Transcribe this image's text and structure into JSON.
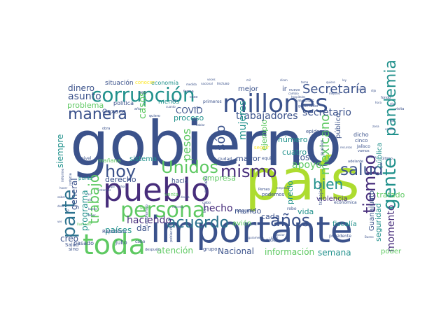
{
  "palette": {
    "navy": "#3b528b",
    "purple": "#472d7b",
    "teal": "#21918c",
    "green": "#5ec962",
    "lime": "#addc30",
    "blue": "#2c728e",
    "yellow": "#fde725"
  },
  "words": [
    {
      "text": "gobierno",
      "color": "navy"
    },
    {
      "text": "país",
      "color": "lime"
    },
    {
      "text": "importante",
      "color": "navy"
    },
    {
      "text": "pueblo",
      "color": "purple"
    },
    {
      "text": "toda",
      "color": "green"
    },
    {
      "text": "persona",
      "color": "green"
    },
    {
      "text": "millones",
      "color": "navy"
    },
    {
      "text": "corrupción",
      "color": "teal"
    },
    {
      "text": "parte",
      "color": "blue"
    },
    {
      "text": "gente",
      "color": "teal"
    },
    {
      "text": "tiempo",
      "color": "purple"
    },
    {
      "text": "Unidos",
      "color": "green"
    },
    {
      "text": "mismo",
      "color": "purple"
    },
    {
      "text": "hoy",
      "color": "navy"
    },
    {
      "text": "salud",
      "color": "navy"
    },
    {
      "text": "años",
      "color": "navy"
    },
    {
      "text": "manera",
      "color": "navy"
    },
    {
      "text": "Secretaría",
      "color": "navy"
    },
    {
      "text": "pandemia",
      "color": "teal"
    },
    {
      "text": "acuerdo",
      "color": "blue"
    },
    {
      "text": "trabajo",
      "color": "green"
    },
    {
      "text": "bien",
      "color": "teal"
    },
    {
      "text": "mexicano",
      "color": "green"
    },
    {
      "text": "sólo",
      "color": "navy"
    },
    {
      "text": "momento",
      "color": "purple"
    },
    {
      "text": "pesos",
      "color": "green"
    },
    {
      "text": "apoyo",
      "color": "green"
    },
    {
      "text": "trabajadores",
      "color": "navy"
    },
    {
      "text": "secretario",
      "color": "navy"
    },
    {
      "text": "hecho",
      "color": "purple"
    },
    {
      "text": "haciendo",
      "color": "purple"
    },
    {
      "text": "asunto",
      "color": "navy"
    },
    {
      "text": "dinero",
      "color": "navy"
    },
    {
      "text": "problema",
      "color": "green"
    },
    {
      "text": "siempre",
      "color": "teal"
    },
    {
      "text": "mujeres",
      "color": "teal"
    },
    {
      "text": "casos",
      "color": "green"
    },
    {
      "text": "COVID",
      "color": "navy"
    },
    {
      "text": "proceso",
      "color": "teal"
    },
    {
      "text": "general",
      "color": "navy"
    },
    {
      "text": "programa",
      "color": "teal"
    },
    {
      "text": "países",
      "color": "teal"
    },
    {
      "text": "dar",
      "color": "navy"
    },
    {
      "text": "creo",
      "color": "navy"
    },
    {
      "text": "atención",
      "color": "green"
    },
    {
      "text": "Nacional",
      "color": "navy"
    },
    {
      "text": "información",
      "color": "green"
    },
    {
      "text": "semana",
      "color": "teal"
    },
    {
      "text": "poder",
      "color": "green"
    },
    {
      "text": "seguridad",
      "color": "teal"
    },
    {
      "text": "Guanajuato",
      "color": "navy"
    },
    {
      "text": "mundo",
      "color": "navy"
    },
    {
      "text": "vida",
      "color": "teal"
    },
    {
      "text": "cada",
      "color": "navy"
    },
    {
      "text": "precio",
      "color": "teal"
    },
    {
      "text": "violencia",
      "color": "purple"
    },
    {
      "text": "tratado",
      "color": "green"
    },
    {
      "text": "público",
      "color": "navy"
    },
    {
      "text": "cosa",
      "color": "navy"
    },
    {
      "text": "cuatro",
      "color": "teal"
    },
    {
      "text": "número",
      "color": "teal"
    },
    {
      "text": "empresa",
      "color": "green"
    },
    {
      "text": "sistema",
      "color": "teal"
    },
    {
      "text": "derecho",
      "color": "navy"
    },
    {
      "text": "situación",
      "color": "navy"
    },
    {
      "text": "economía",
      "color": "teal"
    },
    {
      "text": "mejor",
      "color": "navy"
    },
    {
      "text": "mayor",
      "color": "navy"
    },
    {
      "text": "ejemplo",
      "color": "green"
    },
    {
      "text": "pública",
      "color": "teal"
    },
    {
      "text": "hacia",
      "color": "navy"
    },
    {
      "text": "avión",
      "color": "green"
    },
    {
      "text": "fiscalía",
      "color": "teal"
    },
    {
      "text": "menos",
      "color": "teal"
    },
    {
      "text": "ir",
      "color": "navy"
    },
    {
      "text": "conocer",
      "color": "yellow"
    },
    {
      "text": "política",
      "color": "navy"
    },
    {
      "text": "Oaxaca",
      "color": "navy"
    },
    {
      "text": "mañana",
      "color": "green"
    },
    {
      "text": "julio",
      "color": "navy"
    },
    {
      "text": "pasado",
      "color": "navy"
    },
    {
      "text": "sino",
      "color": "navy"
    },
    {
      "text": "República",
      "color": "navy"
    },
    {
      "text": "punto",
      "color": "teal"
    },
    {
      "text": "Salud",
      "color": "navy"
    },
    {
      "text": "nivel",
      "color": "navy"
    },
    {
      "text": "grupo",
      "color": "navy"
    },
    {
      "text": "sido",
      "color": "navy"
    },
    {
      "text": "cabo",
      "color": "navy"
    },
    {
      "text": "podemos",
      "color": "navy"
    },
    {
      "text": "dicho",
      "color": "navy"
    },
    {
      "text": "cinco",
      "color": "navy"
    },
    {
      "text": "Jalisco",
      "color": "navy"
    },
    {
      "text": "segundo",
      "color": "navy"
    },
    {
      "text": "robo",
      "color": "navy"
    },
    {
      "text": "económica",
      "color": "navy"
    },
    {
      "text": "epidemia",
      "color": "navy"
    },
    {
      "text": "ciudad",
      "color": "navy"
    },
    {
      "text": "equipo",
      "color": "navy"
    },
    {
      "text": "primera",
      "color": "navy"
    },
    {
      "text": "muchas",
      "color": "navy"
    },
    {
      "text": "gobernador",
      "color": "navy"
    },
    {
      "text": "primeros",
      "color": "navy"
    },
    {
      "text": "incluso",
      "color": "navy"
    },
    {
      "text": "pueden",
      "color": "navy"
    },
    {
      "text": "venta",
      "color": "green"
    },
    {
      "text": "trabajando",
      "color": "navy"
    },
    {
      "text": "adelante",
      "color": "navy"
    },
    {
      "text": "último",
      "color": "navy"
    },
    {
      "text": "forma",
      "color": "navy"
    },
    {
      "text": "vez",
      "color": "navy"
    },
    {
      "text": "caso",
      "color": "navy"
    },
    {
      "text": "visita",
      "color": "navy"
    },
    {
      "text": "fondo",
      "color": "navy"
    },
    {
      "text": "vamos",
      "color": "navy"
    },
    {
      "text": "obra",
      "color": "navy"
    },
    {
      "text": "año",
      "color": "navy"
    },
    {
      "text": "nuevo",
      "color": "navy"
    },
    {
      "text": "seguir",
      "color": "yellow"
    },
    {
      "text": "compromiso",
      "color": "navy"
    },
    {
      "text": "población",
      "color": "navy"
    },
    {
      "text": "llamado",
      "color": "green"
    },
    {
      "text": "después",
      "color": "navy"
    },
    {
      "text": "cabo",
      "color": "navy"
    },
    {
      "text": "tipo",
      "color": "navy"
    },
    {
      "text": "Pemex",
      "color": "navy"
    },
    {
      "text": "hospitales",
      "color": "navy"
    },
    {
      "text": "cambio",
      "color": "navy"
    },
    {
      "text": "casi",
      "color": "navy"
    },
    {
      "text": "respeto",
      "color": "navy"
    },
    {
      "text": "justicia",
      "color": "navy"
    },
    {
      "text": "informe",
      "color": "navy"
    },
    {
      "text": "presidente",
      "color": "navy"
    },
    {
      "text": "grave",
      "color": "green"
    },
    {
      "text": "dato",
      "color": "navy"
    },
    {
      "text": "ocho",
      "color": "navy"
    },
    {
      "text": "quiero",
      "color": "navy"
    },
    {
      "text": "cuanto",
      "color": "navy"
    },
    {
      "text": "seguramente",
      "color": "navy"
    },
    {
      "text": "medida",
      "color": "navy"
    },
    {
      "text": "hablar",
      "color": "navy"
    },
    {
      "text": "doctor",
      "color": "navy"
    },
    {
      "text": "Bueno",
      "color": "navy"
    },
    {
      "text": "nacional",
      "color": "navy"
    },
    {
      "text": "empresas",
      "color": "navy"
    },
    {
      "text": "reforma",
      "color": "navy"
    },
    {
      "text": "deuda",
      "color": "navy"
    },
    {
      "text": "dólares",
      "color": "navy"
    },
    {
      "text": "recursos",
      "color": "navy"
    },
    {
      "text": "dicen",
      "color": "navy"
    },
    {
      "text": "mil",
      "color": "navy"
    },
    {
      "text": "quiere",
      "color": "navy"
    },
    {
      "text": "veces",
      "color": "navy"
    },
    {
      "text": "mejores",
      "color": "navy"
    },
    {
      "text": "dijo",
      "color": "navy"
    },
    {
      "text": "lugar",
      "color": "navy"
    },
    {
      "text": "tema",
      "color": "navy"
    },
    {
      "text": "ley",
      "color": "navy"
    },
    {
      "text": "hora",
      "color": "navy"
    },
    {
      "text": "días",
      "color": "navy"
    },
    {
      "text": "día",
      "color": "navy"
    },
    {
      "text": "vacuna",
      "color": "navy"
    },
    {
      "text": "zona",
      "color": "navy"
    },
    {
      "text": "hacer",
      "color": "navy"
    },
    {
      "text": "saber",
      "color": "navy"
    },
    {
      "text": "decir",
      "color": "navy"
    },
    {
      "text": "ver",
      "color": "navy"
    },
    {
      "text": "va",
      "color": "navy"
    },
    {
      "text": "ahí",
      "color": "navy"
    },
    {
      "text": "así",
      "color": "navy"
    },
    {
      "text": "bueno",
      "color": "navy"
    },
    {
      "text": "tener",
      "color": "navy"
    },
    {
      "text": "entonces",
      "color": "navy"
    },
    {
      "text": "aquí",
      "color": "navy"
    },
    {
      "text": "ahora",
      "color": "navy"
    }
  ]
}
